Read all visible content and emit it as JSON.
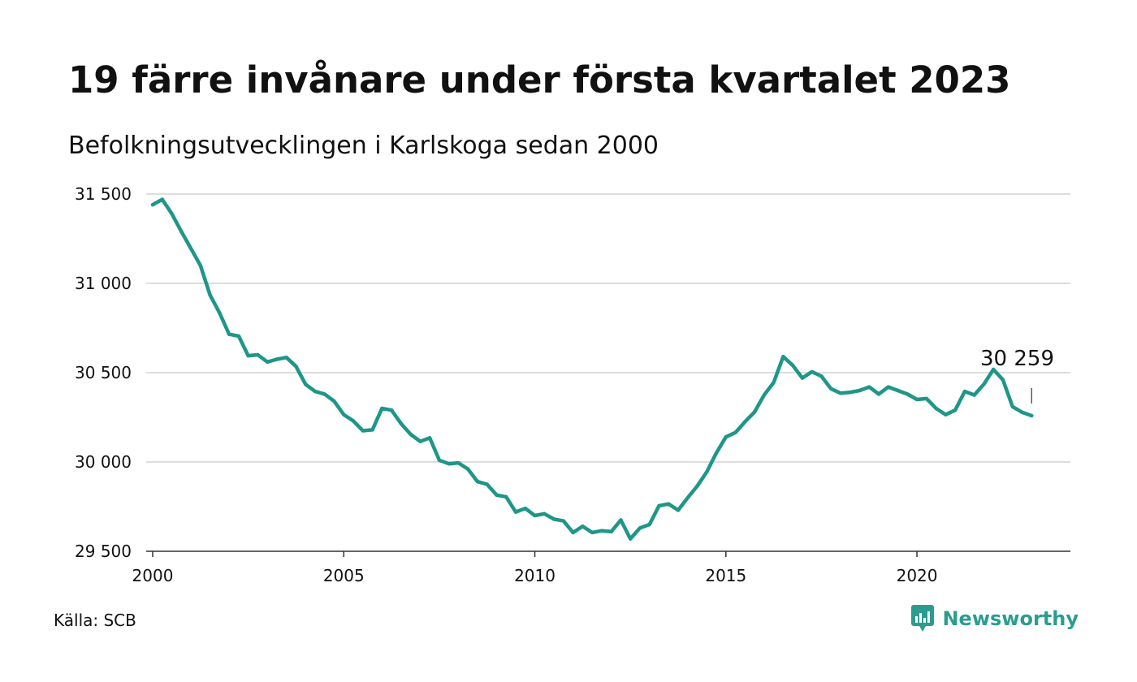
{
  "title": "19 färre invånare under första kvartalet 2023",
  "subtitle": "Befolkningsutvecklingen i Karlskoga sedan 2000",
  "source": "Källa: SCB",
  "brand": {
    "name": "Newsworthy",
    "icon": "newsworthy-logo-icon"
  },
  "colors": {
    "line": "#1e9688",
    "grid": "#dddddd",
    "text": "#111111",
    "brand": "#2a9d8f"
  },
  "chart_data": {
    "type": "line",
    "title": "19 färre invånare under första kvartalet 2023",
    "subtitle": "Befolkningsutvecklingen i Karlskoga sedan 2000",
    "xlabel": "",
    "ylabel": "",
    "xlim": [
      2000.0,
      2023.25
    ],
    "ylim": [
      29500,
      31500
    ],
    "yticks": [
      29500,
      30000,
      30500,
      31000,
      31500
    ],
    "ytick_labels": [
      "29 500",
      "30 000",
      "30 500",
      "31 000",
      "31 500"
    ],
    "xticks": [
      2000,
      2005,
      2010,
      2015,
      2020
    ],
    "xtick_labels": [
      "2000",
      "2005",
      "2010",
      "2015",
      "2020"
    ],
    "grid": true,
    "legend": "none",
    "annotation": {
      "x": 2022.25,
      "y": 30518,
      "text": "30 259"
    },
    "series": [
      {
        "x": [
          2000.0,
          2000.25,
          2000.5,
          2000.75,
          2001.0,
          2001.25,
          2001.5,
          2001.75,
          2002.0,
          2002.25,
          2002.5,
          2002.75,
          2003.0,
          2003.25,
          2003.5,
          2003.75,
          2004.0,
          2004.25,
          2004.5,
          2004.75,
          2005.0,
          2005.25,
          2005.5,
          2005.75,
          2006.0,
          2006.25,
          2006.5,
          2006.75,
          2007.0,
          2007.25,
          2007.5,
          2007.75,
          2008.0,
          2008.25,
          2008.5,
          2008.75,
          2009.0,
          2009.25,
          2009.5,
          2009.75,
          2010.0,
          2010.25,
          2010.5,
          2010.75,
          2011.0,
          2011.25,
          2011.5,
          2011.75,
          2012.0,
          2012.25,
          2012.5,
          2012.75,
          2013.0,
          2013.25,
          2013.5,
          2013.75,
          2014.0,
          2014.25,
          2014.5,
          2014.75,
          2015.0,
          2015.25,
          2015.5,
          2015.75,
          2016.0,
          2016.25,
          2016.5,
          2016.75,
          2017.0,
          2017.25,
          2017.5,
          2017.75,
          2018.0,
          2018.25,
          2018.5,
          2018.75,
          2019.0,
          2019.25,
          2019.5,
          2019.75,
          2020.0,
          2020.25,
          2020.5,
          2020.75,
          2021.0,
          2021.25,
          2021.5,
          2021.75,
          2022.0,
          2022.25,
          2022.5,
          2022.75,
          2023.0
        ],
        "values": [
          31440,
          31470,
          31390,
          31290,
          31195,
          31100,
          30935,
          30835,
          30715,
          30705,
          30595,
          30600,
          30560,
          30575,
          30585,
          30535,
          30435,
          30395,
          30380,
          30340,
          30265,
          30230,
          30175,
          30180,
          30300,
          30290,
          30215,
          30155,
          30115,
          30135,
          30010,
          29990,
          29995,
          29960,
          29890,
          29875,
          29815,
          29805,
          29720,
          29740,
          29700,
          29710,
          29680,
          29670,
          29605,
          29640,
          29605,
          29615,
          29610,
          29675,
          29570,
          29630,
          29650,
          29755,
          29765,
          29730,
          29800,
          29865,
          29945,
          30050,
          30140,
          30165,
          30225,
          30280,
          30375,
          30445,
          30590,
          30540,
          30470,
          30505,
          30480,
          30410,
          30385,
          30390,
          30400,
          30420,
          30380,
          30420,
          30400,
          30380,
          30350,
          30355,
          30300,
          30265,
          30290,
          30395,
          30375,
          30435,
          30518,
          30460,
          30310,
          30278,
          30259
        ]
      }
    ]
  }
}
